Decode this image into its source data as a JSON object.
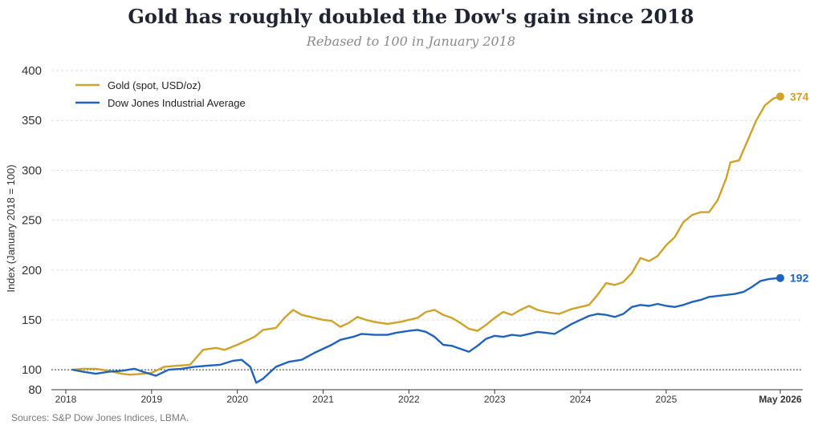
{
  "title": "Gold has roughly doubled the Dow's gain since 2018",
  "subtitle": "Rebased to 100 in January 2018",
  "source": "Sources: S&P Dow Jones Indices, LBMA.",
  "chart_data": {
    "type": "line",
    "ylabel": "Index (January 2018 = 100)",
    "ylim": [
      80,
      400
    ],
    "yticks": [
      80,
      100,
      150,
      200,
      250,
      300,
      350,
      400
    ],
    "xlim": [
      2018.0,
      2026.33
    ],
    "xticks": [
      {
        "value": 2018,
        "label": "2018"
      },
      {
        "value": 2019,
        "label": "2019"
      },
      {
        "value": 2020,
        "label": "2020"
      },
      {
        "value": 2021,
        "label": "2021"
      },
      {
        "value": 2022,
        "label": "2022"
      },
      {
        "value": 2023,
        "label": "2023"
      },
      {
        "value": 2024,
        "label": "2024"
      },
      {
        "value": 2025,
        "label": "2025"
      },
      {
        "value": 2026.33,
        "label": "May 2026",
        "bold": true
      }
    ],
    "grid": true,
    "legend_position": "top-left",
    "reference_line": 100,
    "series": [
      {
        "name": "Gold (spot, USD/oz)",
        "color": "#d1a22a",
        "end_label": "374",
        "points": [
          [
            2018.08,
            100
          ],
          [
            2018.2,
            101
          ],
          [
            2018.35,
            101
          ],
          [
            2018.5,
            99
          ],
          [
            2018.65,
            96
          ],
          [
            2018.75,
            95
          ],
          [
            2018.9,
            96
          ],
          [
            2019.0,
            97
          ],
          [
            2019.15,
            103
          ],
          [
            2019.3,
            104
          ],
          [
            2019.45,
            105
          ],
          [
            2019.6,
            120
          ],
          [
            2019.75,
            122
          ],
          [
            2019.85,
            120
          ],
          [
            2020.0,
            125
          ],
          [
            2020.1,
            129
          ],
          [
            2020.2,
            133
          ],
          [
            2020.3,
            140
          ],
          [
            2020.45,
            142
          ],
          [
            2020.55,
            152
          ],
          [
            2020.65,
            160
          ],
          [
            2020.75,
            155
          ],
          [
            2020.9,
            152
          ],
          [
            2021.0,
            150
          ],
          [
            2021.1,
            149
          ],
          [
            2021.2,
            143
          ],
          [
            2021.3,
            147
          ],
          [
            2021.4,
            153
          ],
          [
            2021.5,
            150
          ],
          [
            2021.6,
            148
          ],
          [
            2021.75,
            146
          ],
          [
            2021.9,
            148
          ],
          [
            2022.0,
            150
          ],
          [
            2022.1,
            152
          ],
          [
            2022.2,
            158
          ],
          [
            2022.3,
            160
          ],
          [
            2022.4,
            155
          ],
          [
            2022.5,
            152
          ],
          [
            2022.6,
            147
          ],
          [
            2022.7,
            141
          ],
          [
            2022.8,
            139
          ],
          [
            2022.9,
            145
          ],
          [
            2023.0,
            152
          ],
          [
            2023.1,
            158
          ],
          [
            2023.2,
            155
          ],
          [
            2023.3,
            160
          ],
          [
            2023.4,
            164
          ],
          [
            2023.5,
            160
          ],
          [
            2023.6,
            158
          ],
          [
            2023.75,
            156
          ],
          [
            2023.9,
            161
          ],
          [
            2024.0,
            163
          ],
          [
            2024.1,
            165
          ],
          [
            2024.2,
            175
          ],
          [
            2024.3,
            187
          ],
          [
            2024.4,
            185
          ],
          [
            2024.5,
            188
          ],
          [
            2024.6,
            197
          ],
          [
            2024.7,
            212
          ],
          [
            2024.8,
            209
          ],
          [
            2024.9,
            214
          ],
          [
            2025.0,
            225
          ],
          [
            2025.1,
            233
          ],
          [
            2025.2,
            248
          ],
          [
            2025.3,
            255
          ],
          [
            2025.4,
            258
          ],
          [
            2025.5,
            258
          ],
          [
            2025.6,
            270
          ],
          [
            2025.7,
            292
          ],
          [
            2025.75,
            308
          ],
          [
            2025.85,
            310
          ],
          [
            2025.95,
            330
          ],
          [
            2026.05,
            350
          ],
          [
            2026.15,
            365
          ],
          [
            2026.25,
            372
          ],
          [
            2026.33,
            374
          ]
        ]
      },
      {
        "name": "Dow Jones Industrial Average",
        "color": "#1f62bf",
        "end_label": "192",
        "points": [
          [
            2018.08,
            100
          ],
          [
            2018.2,
            98
          ],
          [
            2018.35,
            96
          ],
          [
            2018.5,
            98
          ],
          [
            2018.65,
            99
          ],
          [
            2018.8,
            101
          ],
          [
            2018.9,
            98
          ],
          [
            2019.05,
            94
          ],
          [
            2019.2,
            100
          ],
          [
            2019.35,
            101
          ],
          [
            2019.5,
            103
          ],
          [
            2019.65,
            104
          ],
          [
            2019.8,
            105
          ],
          [
            2019.95,
            109
          ],
          [
            2020.05,
            110
          ],
          [
            2020.15,
            103
          ],
          [
            2020.22,
            87
          ],
          [
            2020.3,
            91
          ],
          [
            2020.45,
            103
          ],
          [
            2020.6,
            108
          ],
          [
            2020.75,
            110
          ],
          [
            2020.9,
            117
          ],
          [
            2021.0,
            121
          ],
          [
            2021.1,
            125
          ],
          [
            2021.2,
            130
          ],
          [
            2021.35,
            133
          ],
          [
            2021.45,
            136
          ],
          [
            2021.6,
            135
          ],
          [
            2021.75,
            135
          ],
          [
            2021.85,
            137
          ],
          [
            2022.0,
            139
          ],
          [
            2022.1,
            140
          ],
          [
            2022.2,
            138
          ],
          [
            2022.3,
            133
          ],
          [
            2022.4,
            125
          ],
          [
            2022.5,
            124
          ],
          [
            2022.6,
            121
          ],
          [
            2022.7,
            118
          ],
          [
            2022.8,
            124
          ],
          [
            2022.9,
            131
          ],
          [
            2023.0,
            134
          ],
          [
            2023.1,
            133
          ],
          [
            2023.2,
            135
          ],
          [
            2023.3,
            134
          ],
          [
            2023.4,
            136
          ],
          [
            2023.5,
            138
          ],
          [
            2023.6,
            137
          ],
          [
            2023.7,
            136
          ],
          [
            2023.8,
            141
          ],
          [
            2023.9,
            146
          ],
          [
            2024.0,
            150
          ],
          [
            2024.1,
            154
          ],
          [
            2024.2,
            156
          ],
          [
            2024.3,
            155
          ],
          [
            2024.4,
            153
          ],
          [
            2024.5,
            156
          ],
          [
            2024.6,
            163
          ],
          [
            2024.7,
            165
          ],
          [
            2024.8,
            164
          ],
          [
            2024.9,
            166
          ],
          [
            2025.0,
            164
          ],
          [
            2025.1,
            163
          ],
          [
            2025.2,
            165
          ],
          [
            2025.3,
            168
          ],
          [
            2025.4,
            170
          ],
          [
            2025.5,
            173
          ],
          [
            2025.6,
            174
          ],
          [
            2025.7,
            175
          ],
          [
            2025.8,
            176
          ],
          [
            2025.9,
            178
          ],
          [
            2026.0,
            183
          ],
          [
            2026.1,
            189
          ],
          [
            2026.2,
            191
          ],
          [
            2026.33,
            192
          ]
        ]
      }
    ]
  }
}
